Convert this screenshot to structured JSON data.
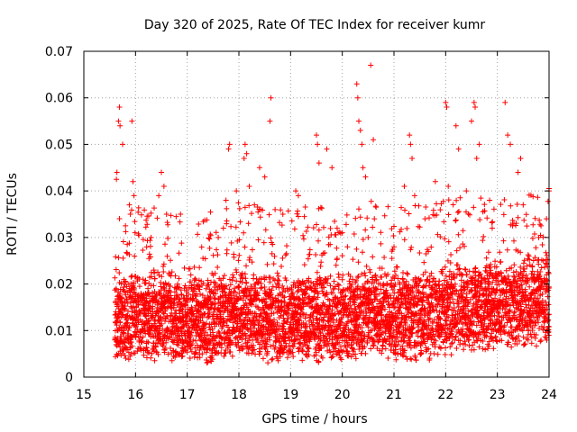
{
  "chart_data": {
    "type": "scatter",
    "title": "Day 320 of 2025, Rate Of TEC Index for receiver kumr",
    "xlabel": "GPS time / hours",
    "ylabel": "ROTI / TECUs",
    "xlim": [
      15,
      24
    ],
    "ylim": [
      0,
      0.07
    ],
    "xticks": [
      "15",
      "16",
      "17",
      "18",
      "19",
      "20",
      "21",
      "22",
      "23",
      "24"
    ],
    "yticks": [
      "0",
      "0.01",
      "0.02",
      "0.03",
      "0.04",
      "0.05",
      "0.06",
      "0.07"
    ],
    "grid": true,
    "marker": "plus",
    "color": "#ff0000",
    "x_start": 15.6,
    "x_end": 24.0,
    "sample_step_hours": 0.005,
    "baseline": [
      [
        15.6,
        0.012
      ],
      [
        16.0,
        0.013
      ],
      [
        16.5,
        0.013
      ],
      [
        17.0,
        0.012
      ],
      [
        17.5,
        0.012
      ],
      [
        18.0,
        0.014
      ],
      [
        18.5,
        0.013
      ],
      [
        19.0,
        0.012
      ],
      [
        19.5,
        0.013
      ],
      [
        20.0,
        0.012
      ],
      [
        20.5,
        0.014
      ],
      [
        21.0,
        0.013
      ],
      [
        21.5,
        0.013
      ],
      [
        22.0,
        0.014
      ],
      [
        22.5,
        0.015
      ],
      [
        23.0,
        0.015
      ],
      [
        23.5,
        0.016
      ],
      [
        24.0,
        0.017
      ]
    ],
    "outliers": [
      [
        15.63,
        0.0425
      ],
      [
        15.64,
        0.044
      ],
      [
        15.67,
        0.055
      ],
      [
        15.69,
        0.058
      ],
      [
        15.7,
        0.054
      ],
      [
        15.75,
        0.05
      ],
      [
        15.88,
        0.037
      ],
      [
        15.9,
        0.035
      ],
      [
        15.93,
        0.055
      ],
      [
        15.95,
        0.042
      ],
      [
        15.97,
        0.039
      ],
      [
        15.99,
        0.031
      ],
      [
        16.3,
        0.03
      ],
      [
        16.45,
        0.039
      ],
      [
        16.5,
        0.044
      ],
      [
        16.55,
        0.041
      ],
      [
        16.6,
        0.035
      ],
      [
        17.6,
        0.03
      ],
      [
        17.7,
        0.032
      ],
      [
        17.75,
        0.038
      ],
      [
        17.8,
        0.049
      ],
      [
        17.82,
        0.05
      ],
      [
        17.95,
        0.04
      ],
      [
        18.1,
        0.047
      ],
      [
        18.12,
        0.05
      ],
      [
        18.15,
        0.048
      ],
      [
        18.2,
        0.041
      ],
      [
        18.3,
        0.037
      ],
      [
        18.4,
        0.045
      ],
      [
        18.5,
        0.043
      ],
      [
        18.6,
        0.055
      ],
      [
        18.62,
        0.06
      ],
      [
        18.7,
        0.036
      ],
      [
        18.85,
        0.035
      ],
      [
        19.1,
        0.04
      ],
      [
        19.15,
        0.039
      ],
      [
        19.5,
        0.052
      ],
      [
        19.52,
        0.05
      ],
      [
        19.55,
        0.046
      ],
      [
        19.7,
        0.049
      ],
      [
        19.8,
        0.045
      ],
      [
        19.9,
        0.032
      ],
      [
        20.0,
        0.031
      ],
      [
        20.1,
        0.028
      ],
      [
        20.28,
        0.063
      ],
      [
        20.3,
        0.06
      ],
      [
        20.32,
        0.055
      ],
      [
        20.35,
        0.053
      ],
      [
        20.38,
        0.05
      ],
      [
        20.4,
        0.045
      ],
      [
        20.45,
        0.043
      ],
      [
        20.5,
        0.03
      ],
      [
        20.55,
        0.067
      ],
      [
        20.6,
        0.051
      ],
      [
        21.0,
        0.028
      ],
      [
        21.2,
        0.041
      ],
      [
        21.3,
        0.052
      ],
      [
        21.32,
        0.05
      ],
      [
        21.35,
        0.047
      ],
      [
        21.4,
        0.039
      ],
      [
        21.6,
        0.034
      ],
      [
        21.8,
        0.042
      ],
      [
        22.0,
        0.059
      ],
      [
        22.02,
        0.058
      ],
      [
        22.05,
        0.041
      ],
      [
        22.2,
        0.054
      ],
      [
        22.25,
        0.049
      ],
      [
        22.4,
        0.04
      ],
      [
        22.5,
        0.055
      ],
      [
        22.55,
        0.059
      ],
      [
        22.57,
        0.058
      ],
      [
        22.6,
        0.047
      ],
      [
        22.65,
        0.05
      ],
      [
        22.85,
        0.038
      ],
      [
        22.9,
        0.032
      ],
      [
        23.15,
        0.059
      ],
      [
        23.2,
        0.052
      ],
      [
        23.25,
        0.05
      ],
      [
        23.4,
        0.044
      ],
      [
        23.45,
        0.047
      ],
      [
        23.5,
        0.037
      ],
      [
        23.8,
        0.03
      ],
      [
        23.95,
        0.034
      ],
      [
        24.0,
        0.04
      ]
    ]
  }
}
